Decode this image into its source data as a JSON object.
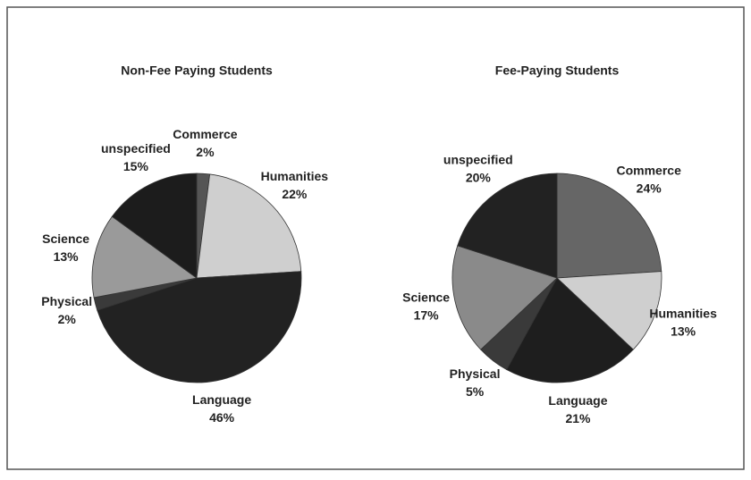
{
  "chart_data": [
    {
      "type": "pie",
      "title": "Non-Fee Paying Students",
      "categories": [
        "Commerce",
        "Humanities",
        "Language",
        "Physical",
        "Science",
        "unspecified"
      ],
      "values": [
        2,
        22,
        46,
        2,
        13,
        15
      ],
      "value_labels": [
        "2%",
        "22%",
        "46%",
        "2%",
        "13%",
        "15%"
      ],
      "colors": [
        "#555555",
        "#cfcfcf",
        "#222222",
        "#3a3a3a",
        "#9a9a9a",
        "#1c1c1c"
      ]
    },
    {
      "type": "pie",
      "title": "Fee-Paying Students",
      "categories": [
        "Commerce",
        "Humanities",
        "Language",
        "Physical",
        "Science",
        "unspecified"
      ],
      "values": [
        24,
        13,
        21,
        5,
        17,
        20
      ],
      "value_labels": [
        "24%",
        "13%",
        "21%",
        "5%",
        "17%",
        "20%"
      ],
      "colors": [
        "#666666",
        "#cfcfcf",
        "#1e1e1e",
        "#3a3a3a",
        "#8a8a8a",
        "#222222"
      ]
    }
  ]
}
